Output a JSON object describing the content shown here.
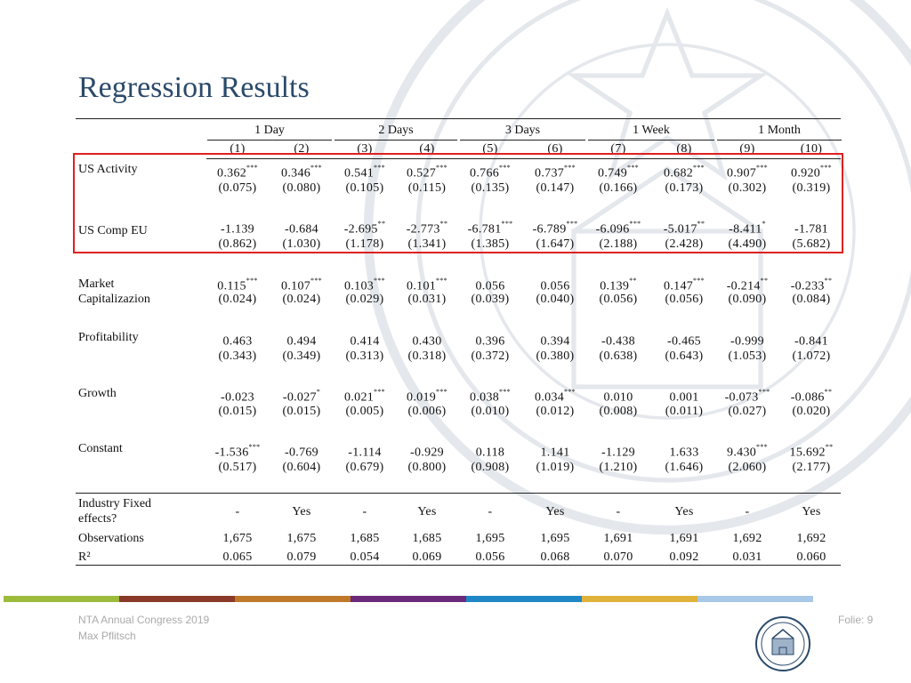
{
  "slide": {
    "title": "Regression Results",
    "page_number": "Folie: 9",
    "footer_line1": "NTA Annual Congress 2019",
    "footer_line2": "Max Pflitsch"
  },
  "colors": {
    "title": "#2b4a6b",
    "highlight_box": "#e02020",
    "footer_bar": [
      "#9dbb3b",
      "#8b3a2a",
      "#c0782a",
      "#6b2b7a",
      "#1f87c6",
      "#e0b23a",
      "#a8c8e8"
    ]
  },
  "table": {
    "horizons": [
      "1 Day",
      "2 Days",
      "3 Days",
      "1 Week",
      "1 Month"
    ],
    "model_numbers": [
      "(1)",
      "(2)",
      "(3)",
      "(4)",
      "(5)",
      "(6)",
      "(7)",
      "(8)",
      "(9)",
      "(10)"
    ],
    "rows": [
      {
        "label": "US Activity",
        "coef": [
          {
            "v": "0.362",
            "s": "***"
          },
          {
            "v": "0.346",
            "s": "***"
          },
          {
            "v": "0.541",
            "s": "***"
          },
          {
            "v": "0.527",
            "s": "***"
          },
          {
            "v": "0.766",
            "s": "***"
          },
          {
            "v": "0.737",
            "s": "***"
          },
          {
            "v": "0.749",
            "s": "***"
          },
          {
            "v": "0.682",
            "s": "***"
          },
          {
            "v": "0.907",
            "s": "***"
          },
          {
            "v": "0.920",
            "s": "***"
          }
        ],
        "se": [
          "(0.075)",
          "(0.080)",
          "(0.105)",
          "(0.115)",
          "(0.135)",
          "(0.147)",
          "(0.166)",
          "(0.173)",
          "(0.302)",
          "(0.319)"
        ]
      },
      {
        "label": "US Comp EU",
        "coef": [
          {
            "v": "-1.139",
            "s": ""
          },
          {
            "v": "-0.684",
            "s": ""
          },
          {
            "v": "-2.695",
            "s": "**"
          },
          {
            "v": "-2.773",
            "s": "**"
          },
          {
            "v": "-6.781",
            "s": "***"
          },
          {
            "v": "-6.789",
            "s": "***"
          },
          {
            "v": "-6.096",
            "s": "***"
          },
          {
            "v": "-5.017",
            "s": "**"
          },
          {
            "v": "-8.411",
            "s": "*"
          },
          {
            "v": "-1.781",
            "s": ""
          }
        ],
        "se": [
          "(0.862)",
          "(1.030)",
          "(1.178)",
          "(1.341)",
          "(1.385)",
          "(1.647)",
          "(2.188)",
          "(2.428)",
          "(4.490)",
          "(5.682)"
        ]
      },
      {
        "label": "Market Capitalizazion",
        "coef": [
          {
            "v": "0.115",
            "s": "***"
          },
          {
            "v": "0.107",
            "s": "***"
          },
          {
            "v": "0.103",
            "s": "***"
          },
          {
            "v": "0.101",
            "s": "***"
          },
          {
            "v": "0.056",
            "s": ""
          },
          {
            "v": "0.056",
            "s": ""
          },
          {
            "v": "0.139",
            "s": "**"
          },
          {
            "v": "0.147",
            "s": "***"
          },
          {
            "v": "-0.214",
            "s": "**"
          },
          {
            "v": "-0.233",
            "s": "**"
          }
        ],
        "se": [
          "(0.024)",
          "(0.024)",
          "(0.029)",
          "(0.031)",
          "(0.039)",
          "(0.040)",
          "(0.056)",
          "(0.056)",
          "(0.090)",
          "(0.084)"
        ]
      },
      {
        "label": "Profitability",
        "coef": [
          {
            "v": "0.463",
            "s": ""
          },
          {
            "v": "0.494",
            "s": ""
          },
          {
            "v": "0.414",
            "s": ""
          },
          {
            "v": "0.430",
            "s": ""
          },
          {
            "v": "0.396",
            "s": ""
          },
          {
            "v": "0.394",
            "s": ""
          },
          {
            "v": "-0.438",
            "s": ""
          },
          {
            "v": "-0.465",
            "s": ""
          },
          {
            "v": "-0.999",
            "s": ""
          },
          {
            "v": "-0.841",
            "s": ""
          }
        ],
        "se": [
          "(0.343)",
          "(0.349)",
          "(0.313)",
          "(0.318)",
          "(0.372)",
          "(0.380)",
          "(0.638)",
          "(0.643)",
          "(1.053)",
          "(1.072)"
        ]
      },
      {
        "label": "Growth",
        "coef": [
          {
            "v": "-0.023",
            "s": ""
          },
          {
            "v": "-0.027",
            "s": "*"
          },
          {
            "v": "0.021",
            "s": "***"
          },
          {
            "v": "0.019",
            "s": "***"
          },
          {
            "v": "0.038",
            "s": "***"
          },
          {
            "v": "0.034",
            "s": "***"
          },
          {
            "v": "0.010",
            "s": ""
          },
          {
            "v": "0.001",
            "s": ""
          },
          {
            "v": "-0.073",
            "s": "***"
          },
          {
            "v": "-0.086",
            "s": "**"
          }
        ],
        "se": [
          "(0.015)",
          "(0.015)",
          "(0.005)",
          "(0.006)",
          "(0.010)",
          "(0.012)",
          "(0.008)",
          "(0.011)",
          "(0.027)",
          "(0.020)"
        ]
      },
      {
        "label": "Constant",
        "coef": [
          {
            "v": "-1.536",
            "s": "***"
          },
          {
            "v": "-0.769",
            "s": ""
          },
          {
            "v": "-1.114",
            "s": ""
          },
          {
            "v": "-0.929",
            "s": ""
          },
          {
            "v": "0.118",
            "s": ""
          },
          {
            "v": "1.141",
            "s": ""
          },
          {
            "v": "-1.129",
            "s": ""
          },
          {
            "v": "1.633",
            "s": ""
          },
          {
            "v": "9.430",
            "s": "***"
          },
          {
            "v": "15.692",
            "s": "**"
          }
        ],
        "se": [
          "(0.517)",
          "(0.604)",
          "(0.679)",
          "(0.800)",
          "(0.908)",
          "(1.019)",
          "(1.210)",
          "(1.646)",
          "(2.060)",
          "(2.177)"
        ]
      }
    ],
    "summary": [
      {
        "label": "Industry Fixed effects?",
        "values": [
          "-",
          "Yes",
          "-",
          "Yes",
          "-",
          "Yes",
          "-",
          "Yes",
          "-",
          "Yes"
        ]
      },
      {
        "label": "Observations",
        "values": [
          "1,675",
          "1,675",
          "1,685",
          "1,685",
          "1,695",
          "1,695",
          "1,691",
          "1,691",
          "1,692",
          "1,692"
        ]
      },
      {
        "label": "R²",
        "values": [
          "0.065",
          "0.079",
          "0.054",
          "0.069",
          "0.056",
          "0.068",
          "0.070",
          "0.092",
          "0.031",
          "0.060"
        ]
      }
    ]
  }
}
